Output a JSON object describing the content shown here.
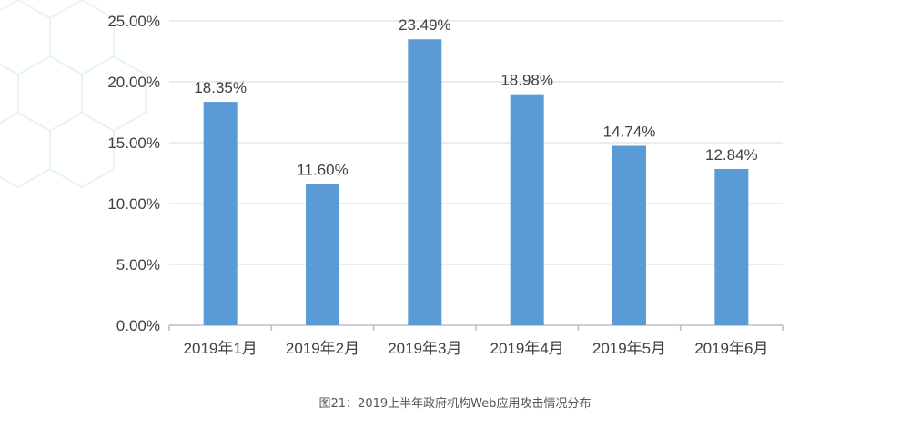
{
  "caption": "图21：2019上半年政府机构Web应用攻击情况分布",
  "colors": {
    "bar": "#5b9bd5",
    "grid": "#d9d9d9",
    "axis": "#bfbfbf",
    "text": "#404040",
    "pattern": "#e6f4f7"
  },
  "chart_data": {
    "type": "bar",
    "categories": [
      "2019年1月",
      "2019年2月",
      "2019年3月",
      "2019年4月",
      "2019年5月",
      "2019年6月"
    ],
    "values": [
      18.35,
      11.6,
      23.49,
      18.98,
      14.74,
      12.84
    ],
    "data_labels": [
      "18.35%",
      "11.60%",
      "23.49%",
      "18.98%",
      "14.74%",
      "12.84%"
    ],
    "y_ticks": [
      0,
      5,
      10,
      15,
      20,
      25
    ],
    "y_tick_labels": [
      "0.00%",
      "5.00%",
      "10.00%",
      "15.00%",
      "20.00%",
      "25.00%"
    ],
    "ylim": [
      0,
      25
    ],
    "grid": true,
    "legend": "none",
    "title": "",
    "xlabel": "",
    "ylabel": ""
  }
}
